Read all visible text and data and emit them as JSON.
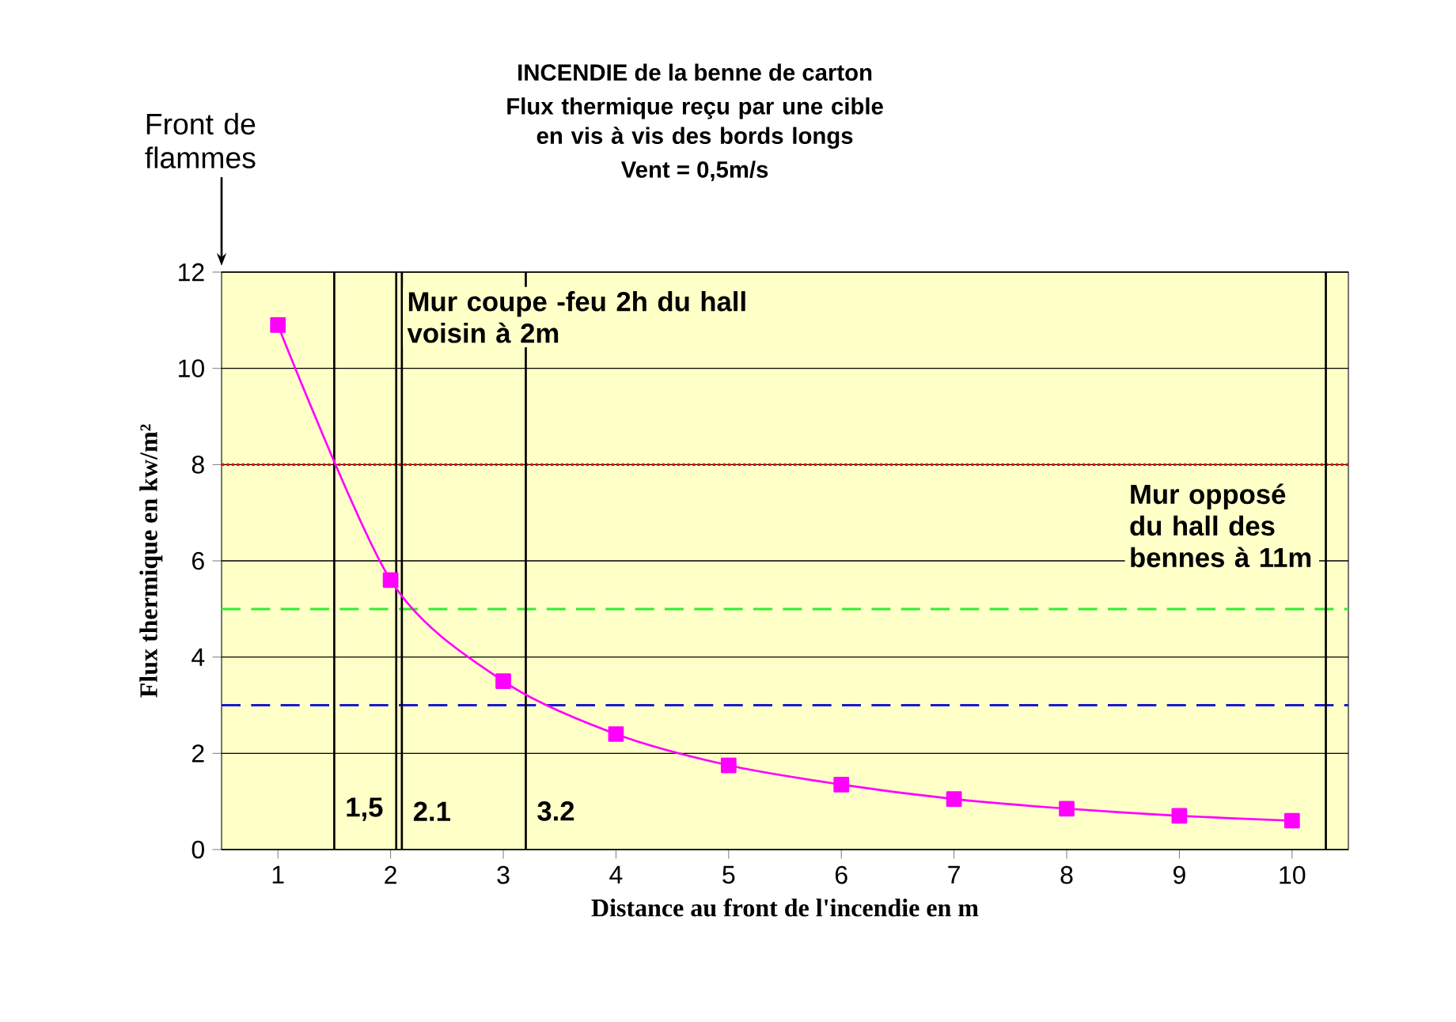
{
  "chart_data": {
    "type": "line",
    "title": "INCENDIE de la benne de carton",
    "subtitle": "Flux thermique reçu par une cible en vis à vis des bords longs",
    "xlabel": "Distance au front de l'incendie en m",
    "ylabel": "Flux thermique en kw/m²",
    "x": [
      1,
      2,
      3,
      4,
      5,
      6,
      7,
      8,
      9,
      10
    ],
    "series": [
      {
        "color": "#ff00ff",
        "values": [
          10.9,
          5.6,
          3.5,
          2.4,
          1.75,
          1.35,
          1.05,
          0.85,
          0.7,
          0.6
        ]
      }
    ],
    "xlim": [
      0.5,
      10.5
    ],
    "xticks": [
      1,
      2,
      3,
      4,
      5,
      6,
      7,
      8,
      9,
      10
    ],
    "ylim": [
      0,
      12
    ],
    "yticks": [
      0,
      2,
      4,
      6,
      8,
      10,
      12
    ],
    "grid": "y",
    "marker": "square",
    "line_style": "solid",
    "ref_lines": [
      {
        "axis": "y",
        "value": 8,
        "color": "#ff0000",
        "line_style": "dotted"
      },
      {
        "axis": "y",
        "value": 5,
        "color": "#33ee33",
        "line_style": "dashed"
      },
      {
        "axis": "y",
        "value": 3,
        "color": "#1a1acc",
        "line_style": "dashed"
      },
      {
        "axis": "x",
        "value": 1.5,
        "color": "#000000",
        "line_style": "solid",
        "label": "1,5"
      },
      {
        "axis": "x",
        "value": 2.05,
        "color": "#000000",
        "line_style": "solid",
        "label": "Mur coupe -feu 2h du hall voisin à 2m"
      },
      {
        "axis": "x",
        "value": 2.1,
        "color": "#000000",
        "line_style": "solid",
        "label": "2.1"
      },
      {
        "axis": "x",
        "value": 3.2,
        "color": "#000000",
        "line_style": "solid",
        "label": "3.2"
      },
      {
        "axis": "x",
        "value": 10.3,
        "color": "#000000",
        "line_style": "solid",
        "label": "Mur opposé du hall des bennes à 11m"
      }
    ],
    "annotations": [
      "Vent = 0,5m/s",
      "Front de flammes"
    ]
  }
}
